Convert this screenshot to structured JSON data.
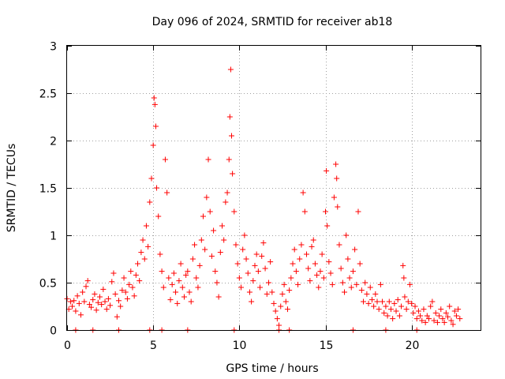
{
  "chart_data": {
    "type": "scatter",
    "title": "Day 096 of 2024, SRMTID for receiver ab18",
    "xlabel": "GPS time / hours",
    "ylabel": "SRMTID / TECUs",
    "xlim": [
      0,
      24
    ],
    "ylim": [
      0,
      3
    ],
    "xticks": [
      0,
      5,
      10,
      15,
      20
    ],
    "yticks": [
      0,
      0.5,
      1,
      1.5,
      2,
      2.5,
      3
    ],
    "xtick_labels": [
      "0",
      "5",
      "10",
      "15",
      "20"
    ],
    "ytick_labels": [
      "0",
      "0.5",
      "1",
      "1.5",
      "2",
      "2.5",
      "3"
    ],
    "grid": true,
    "marker": "+",
    "color": "#ff0000",
    "series": [
      {
        "name": "SRMTID",
        "points": [
          [
            0.0,
            0.33
          ],
          [
            0.1,
            0.22
          ],
          [
            0.2,
            0.3
          ],
          [
            0.3,
            0.25
          ],
          [
            0.4,
            0.31
          ],
          [
            0.5,
            0.2
          ],
          [
            0.6,
            0.36
          ],
          [
            0.7,
            0.28
          ],
          [
            0.8,
            0.16
          ],
          [
            0.9,
            0.4
          ],
          [
            1.0,
            0.3
          ],
          [
            1.1,
            0.46
          ],
          [
            1.2,
            0.52
          ],
          [
            1.3,
            0.27
          ],
          [
            1.4,
            0.24
          ],
          [
            1.5,
            0.32
          ],
          [
            1.6,
            0.38
          ],
          [
            1.7,
            0.21
          ],
          [
            1.8,
            0.29
          ],
          [
            1.9,
            0.35
          ],
          [
            2.0,
            0.27
          ],
          [
            2.1,
            0.43
          ],
          [
            2.2,
            0.3
          ],
          [
            2.3,
            0.22
          ],
          [
            2.4,
            0.33
          ],
          [
            2.5,
            0.26
          ],
          [
            2.6,
            0.51
          ],
          [
            2.7,
            0.6
          ],
          [
            2.8,
            0.38
          ],
          [
            2.9,
            0.14
          ],
          [
            3.0,
            0.31
          ],
          [
            3.1,
            0.25
          ],
          [
            3.2,
            0.42
          ],
          [
            3.3,
            0.55
          ],
          [
            3.4,
            0.4
          ],
          [
            3.5,
            0.33
          ],
          [
            3.6,
            0.48
          ],
          [
            3.7,
            0.62
          ],
          [
            3.8,
            0.45
          ],
          [
            3.9,
            0.36
          ],
          [
            4.0,
            0.58
          ],
          [
            4.1,
            0.7
          ],
          [
            4.2,
            0.52
          ],
          [
            4.3,
            0.82
          ],
          [
            4.4,
            0.95
          ],
          [
            4.5,
            0.75
          ],
          [
            4.6,
            1.1
          ],
          [
            4.7,
            0.88
          ],
          [
            4.8,
            1.35
          ],
          [
            4.9,
            1.6
          ],
          [
            5.0,
            1.95
          ],
          [
            5.05,
            2.45
          ],
          [
            5.1,
            2.38
          ],
          [
            5.15,
            2.15
          ],
          [
            5.2,
            1.5
          ],
          [
            5.3,
            1.2
          ],
          [
            5.4,
            0.8
          ],
          [
            5.5,
            0.62
          ],
          [
            5.6,
            0.45
          ],
          [
            5.7,
            1.8
          ],
          [
            5.8,
            1.45
          ],
          [
            5.9,
            0.55
          ],
          [
            6.0,
            0.32
          ],
          [
            6.1,
            0.48
          ],
          [
            6.2,
            0.6
          ],
          [
            6.3,
            0.4
          ],
          [
            6.4,
            0.28
          ],
          [
            6.5,
            0.52
          ],
          [
            6.6,
            0.7
          ],
          [
            6.7,
            0.45
          ],
          [
            6.8,
            0.35
          ],
          [
            6.9,
            0.58
          ],
          [
            7.0,
            0.62
          ],
          [
            7.1,
            0.4
          ],
          [
            7.2,
            0.3
          ],
          [
            7.3,
            0.75
          ],
          [
            7.4,
            0.9
          ],
          [
            7.5,
            0.55
          ],
          [
            7.6,
            0.45
          ],
          [
            7.7,
            0.68
          ],
          [
            7.8,
            0.95
          ],
          [
            7.9,
            1.2
          ],
          [
            8.0,
            0.85
          ],
          [
            8.1,
            1.4
          ],
          [
            8.2,
            1.8
          ],
          [
            8.3,
            1.25
          ],
          [
            8.4,
            0.78
          ],
          [
            8.5,
            1.05
          ],
          [
            8.6,
            0.62
          ],
          [
            8.7,
            0.5
          ],
          [
            8.8,
            0.35
          ],
          [
            8.9,
            0.82
          ],
          [
            9.0,
            1.1
          ],
          [
            9.1,
            0.95
          ],
          [
            9.2,
            1.35
          ],
          [
            9.3,
            1.45
          ],
          [
            9.4,
            1.8
          ],
          [
            9.45,
            2.25
          ],
          [
            9.5,
            2.75
          ],
          [
            9.55,
            2.05
          ],
          [
            9.6,
            1.65
          ],
          [
            9.7,
            1.25
          ],
          [
            9.8,
            0.9
          ],
          [
            9.9,
            0.7
          ],
          [
            10.0,
            0.55
          ],
          [
            10.1,
            0.45
          ],
          [
            10.2,
            0.85
          ],
          [
            10.3,
            1.0
          ],
          [
            10.4,
            0.75
          ],
          [
            10.5,
            0.6
          ],
          [
            10.6,
            0.4
          ],
          [
            10.7,
            0.3
          ],
          [
            10.8,
            0.52
          ],
          [
            10.9,
            0.68
          ],
          [
            11.0,
            0.8
          ],
          [
            11.1,
            0.62
          ],
          [
            11.2,
            0.45
          ],
          [
            11.3,
            0.78
          ],
          [
            11.4,
            0.92
          ],
          [
            11.5,
            0.65
          ],
          [
            11.6,
            0.38
          ],
          [
            11.7,
            0.5
          ],
          [
            11.8,
            0.72
          ],
          [
            11.9,
            0.4
          ],
          [
            12.0,
            0.28
          ],
          [
            12.1,
            0.2
          ],
          [
            12.2,
            0.12
          ],
          [
            12.3,
            0.05
          ],
          [
            12.4,
            0.25
          ],
          [
            12.5,
            0.38
          ],
          [
            12.6,
            0.48
          ],
          [
            12.7,
            0.3
          ],
          [
            12.8,
            0.22
          ],
          [
            12.9,
            0.42
          ],
          [
            13.0,
            0.55
          ],
          [
            13.1,
            0.7
          ],
          [
            13.2,
            0.85
          ],
          [
            13.3,
            0.62
          ],
          [
            13.4,
            0.48
          ],
          [
            13.5,
            0.75
          ],
          [
            13.6,
            0.9
          ],
          [
            13.7,
            1.45
          ],
          [
            13.8,
            1.25
          ],
          [
            13.9,
            0.8
          ],
          [
            14.0,
            0.65
          ],
          [
            14.1,
            0.52
          ],
          [
            14.2,
            0.88
          ],
          [
            14.3,
            0.95
          ],
          [
            14.4,
            0.7
          ],
          [
            14.5,
            0.58
          ],
          [
            14.6,
            0.45
          ],
          [
            14.7,
            0.62
          ],
          [
            14.8,
            0.8
          ],
          [
            14.9,
            0.55
          ],
          [
            15.0,
            1.25
          ],
          [
            15.05,
            1.68
          ],
          [
            15.1,
            1.1
          ],
          [
            15.2,
            0.72
          ],
          [
            15.3,
            0.6
          ],
          [
            15.4,
            0.48
          ],
          [
            15.5,
            1.4
          ],
          [
            15.6,
            1.75
          ],
          [
            15.65,
            1.6
          ],
          [
            15.7,
            1.3
          ],
          [
            15.8,
            0.9
          ],
          [
            15.9,
            0.65
          ],
          [
            16.0,
            0.5
          ],
          [
            16.1,
            0.4
          ],
          [
            16.2,
            1.0
          ],
          [
            16.3,
            0.75
          ],
          [
            16.4,
            0.55
          ],
          [
            16.5,
            0.45
          ],
          [
            16.6,
            0.62
          ],
          [
            16.7,
            0.85
          ],
          [
            16.8,
            0.48
          ],
          [
            16.9,
            1.25
          ],
          [
            17.0,
            0.7
          ],
          [
            17.1,
            0.42
          ],
          [
            17.2,
            0.3
          ],
          [
            17.3,
            0.5
          ],
          [
            17.4,
            0.38
          ],
          [
            17.5,
            0.28
          ],
          [
            17.6,
            0.45
          ],
          [
            17.7,
            0.32
          ],
          [
            17.8,
            0.25
          ],
          [
            17.9,
            0.38
          ],
          [
            18.0,
            0.3
          ],
          [
            18.1,
            0.22
          ],
          [
            18.2,
            0.48
          ],
          [
            18.3,
            0.3
          ],
          [
            18.4,
            0.18
          ],
          [
            18.5,
            0.25
          ],
          [
            18.6,
            0.15
          ],
          [
            18.7,
            0.3
          ],
          [
            18.8,
            0.22
          ],
          [
            18.9,
            0.12
          ],
          [
            19.0,
            0.28
          ],
          [
            19.1,
            0.2
          ],
          [
            19.2,
            0.32
          ],
          [
            19.3,
            0.15
          ],
          [
            19.4,
            0.25
          ],
          [
            19.5,
            0.68
          ],
          [
            19.55,
            0.55
          ],
          [
            19.6,
            0.35
          ],
          [
            19.7,
            0.22
          ],
          [
            19.8,
            0.3
          ],
          [
            19.9,
            0.48
          ],
          [
            20.0,
            0.28
          ],
          [
            20.1,
            0.18
          ],
          [
            20.2,
            0.25
          ],
          [
            20.3,
            0.12
          ],
          [
            20.4,
            0.2
          ],
          [
            20.5,
            0.15
          ],
          [
            20.6,
            0.1
          ],
          [
            20.7,
            0.22
          ],
          [
            20.8,
            0.08
          ],
          [
            20.9,
            0.15
          ],
          [
            21.0,
            0.12
          ],
          [
            21.1,
            0.25
          ],
          [
            21.2,
            0.3
          ],
          [
            21.3,
            0.1
          ],
          [
            21.4,
            0.18
          ],
          [
            21.5,
            0.08
          ],
          [
            21.6,
            0.15
          ],
          [
            21.7,
            0.22
          ],
          [
            21.8,
            0.12
          ],
          [
            21.9,
            0.08
          ],
          [
            22.0,
            0.18
          ],
          [
            22.1,
            0.14
          ],
          [
            22.2,
            0.25
          ],
          [
            22.3,
            0.1
          ],
          [
            22.4,
            0.06
          ],
          [
            22.5,
            0.2
          ],
          [
            22.6,
            0.15
          ],
          [
            22.7,
            0.22
          ],
          [
            22.8,
            0.12
          ],
          [
            0.5,
            0.0
          ],
          [
            1.5,
            0.0
          ],
          [
            3.0,
            0.0
          ],
          [
            4.8,
            0.0
          ],
          [
            5.5,
            0.0
          ],
          [
            7.0,
            0.0
          ],
          [
            9.7,
            0.0
          ],
          [
            12.3,
            0.0
          ],
          [
            12.9,
            0.0
          ],
          [
            16.6,
            0.0
          ],
          [
            18.5,
            0.0
          ],
          [
            20.3,
            0.0
          ]
        ]
      }
    ]
  }
}
